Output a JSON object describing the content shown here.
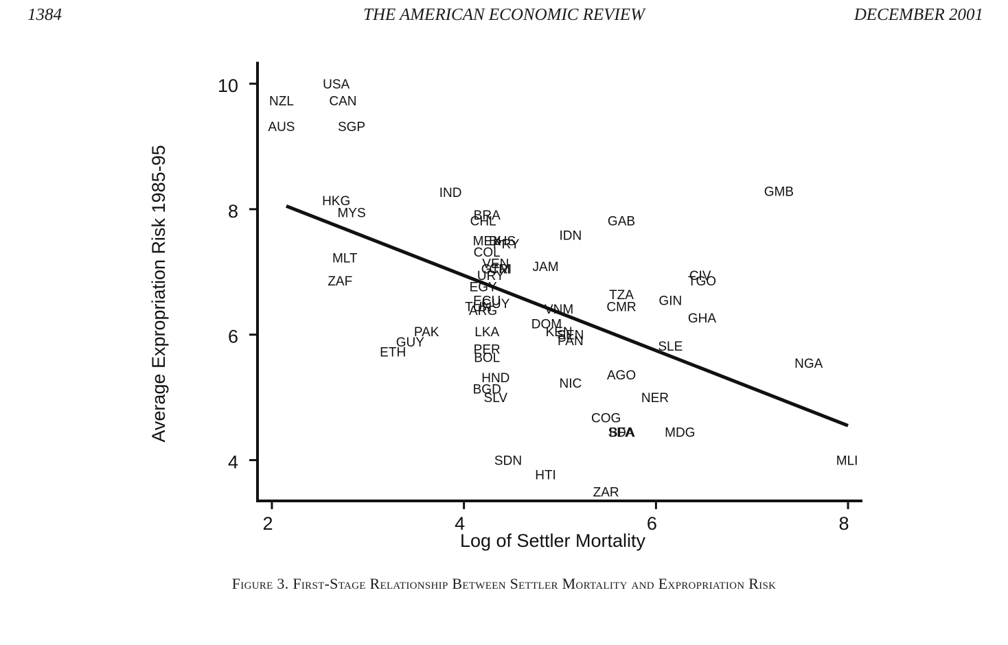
{
  "header": {
    "page_number": "1384",
    "journal": "THE AMERICAN ECONOMIC REVIEW",
    "date": "DECEMBER 2001"
  },
  "caption": {
    "label": "Figure 3.",
    "text": "First-Stage Relationship Between Settler Mortality and Expropriation Risk"
  },
  "chart_data": {
    "type": "scatter",
    "xlabel": "Log of Settler Mortality",
    "ylabel": "Average Expropriation Risk 1985-95",
    "xlim": [
      1.85,
      8.15
    ],
    "ylim": [
      3.35,
      10.35
    ],
    "xticks": [
      2,
      4,
      6,
      8
    ],
    "yticks": [
      4,
      6,
      8,
      10
    ],
    "grid": false,
    "legend": "none",
    "points": [
      {
        "label": "USA",
        "x": 2.67,
        "y": 10.0
      },
      {
        "label": "NZL",
        "x": 2.1,
        "y": 9.73
      },
      {
        "label": "CAN",
        "x": 2.74,
        "y": 9.73
      },
      {
        "label": "AUS",
        "x": 2.1,
        "y": 9.32
      },
      {
        "label": "SGP",
        "x": 2.83,
        "y": 9.32
      },
      {
        "label": "IND",
        "x": 3.86,
        "y": 8.27
      },
      {
        "label": "GMB",
        "x": 7.28,
        "y": 8.29
      },
      {
        "label": "HKG",
        "x": 2.67,
        "y": 8.14
      },
      {
        "label": "MYS",
        "x": 2.83,
        "y": 7.95
      },
      {
        "label": "BRA",
        "x": 4.24,
        "y": 7.91
      },
      {
        "label": "CHL",
        "x": 4.2,
        "y": 7.82
      },
      {
        "label": "GAB",
        "x": 5.64,
        "y": 7.82
      },
      {
        "label": "IDN",
        "x": 5.11,
        "y": 7.59
      },
      {
        "label": "MEX",
        "x": 4.24,
        "y": 7.5
      },
      {
        "label": "BHS",
        "x": 4.4,
        "y": 7.5
      },
      {
        "label": "PRY",
        "x": 4.44,
        "y": 7.45
      },
      {
        "label": "COL",
        "x": 4.24,
        "y": 7.32
      },
      {
        "label": "MLT",
        "x": 2.76,
        "y": 7.23
      },
      {
        "label": "VEN",
        "x": 4.33,
        "y": 7.14
      },
      {
        "label": "GTM",
        "x": 4.33,
        "y": 7.05
      },
      {
        "label": "CRI",
        "x": 4.38,
        "y": 7.05
      },
      {
        "label": "JAM",
        "x": 4.85,
        "y": 7.09
      },
      {
        "label": "URY",
        "x": 4.28,
        "y": 6.95
      },
      {
        "label": "CIV",
        "x": 6.46,
        "y": 6.95
      },
      {
        "label": "TGO",
        "x": 6.48,
        "y": 6.86
      },
      {
        "label": "ZAF",
        "x": 2.71,
        "y": 6.86
      },
      {
        "label": "EGY",
        "x": 4.2,
        "y": 6.77
      },
      {
        "label": "TZA",
        "x": 5.64,
        "y": 6.64
      },
      {
        "label": "ECU",
        "x": 4.24,
        "y": 6.55
      },
      {
        "label": "GUY",
        "x": 4.33,
        "y": 6.5
      },
      {
        "label": "TUN",
        "x": 4.15,
        "y": 6.45
      },
      {
        "label": "GIN",
        "x": 6.15,
        "y": 6.55
      },
      {
        "label": "CMR",
        "x": 5.64,
        "y": 6.45
      },
      {
        "label": "ARG",
        "x": 4.2,
        "y": 6.39
      },
      {
        "label": "VNM",
        "x": 4.99,
        "y": 6.41
      },
      {
        "label": "GHA",
        "x": 6.48,
        "y": 6.27
      },
      {
        "label": "DOM",
        "x": 4.86,
        "y": 6.18
      },
      {
        "label": "KEN",
        "x": 4.99,
        "y": 6.05
      },
      {
        "label": "SEN",
        "x": 5.11,
        "y": 6.0
      },
      {
        "label": "LKA",
        "x": 4.24,
        "y": 6.05
      },
      {
        "label": "PAK",
        "x": 3.61,
        "y": 6.05
      },
      {
        "label": "PAN",
        "x": 5.11,
        "y": 5.91
      },
      {
        "label": "GUY",
        "x": 3.44,
        "y": 5.89
      },
      {
        "label": "SLE",
        "x": 6.15,
        "y": 5.82
      },
      {
        "label": "ETH",
        "x": 3.26,
        "y": 5.73
      },
      {
        "label": "PER",
        "x": 4.24,
        "y": 5.77
      },
      {
        "label": "BOL",
        "x": 4.24,
        "y": 5.64
      },
      {
        "label": "NGA",
        "x": 7.59,
        "y": 5.55
      },
      {
        "label": "AGO",
        "x": 5.64,
        "y": 5.36
      },
      {
        "label": "HND",
        "x": 4.33,
        "y": 5.32
      },
      {
        "label": "NIC",
        "x": 5.11,
        "y": 5.23
      },
      {
        "label": "BGD",
        "x": 4.24,
        "y": 5.14
      },
      {
        "label": "SLV",
        "x": 4.33,
        "y": 5.0
      },
      {
        "label": "NER",
        "x": 5.99,
        "y": 5.0
      },
      {
        "label": "COG",
        "x": 5.48,
        "y": 4.68
      },
      {
        "label": "BFA",
        "x": 5.64,
        "y": 4.45
      },
      {
        "label": "SDA",
        "x": 5.64,
        "y": 4.45
      },
      {
        "label": "MDG",
        "x": 6.25,
        "y": 4.45
      },
      {
        "label": "SDN",
        "x": 4.46,
        "y": 4.0
      },
      {
        "label": "MLI",
        "x": 7.99,
        "y": 4.0
      },
      {
        "label": "HTI",
        "x": 4.85,
        "y": 3.77
      },
      {
        "label": "ZAR",
        "x": 5.48,
        "y": 3.5
      }
    ],
    "fit_line": {
      "x": [
        2.15,
        8.0
      ],
      "y": [
        8.05,
        4.55
      ]
    }
  }
}
